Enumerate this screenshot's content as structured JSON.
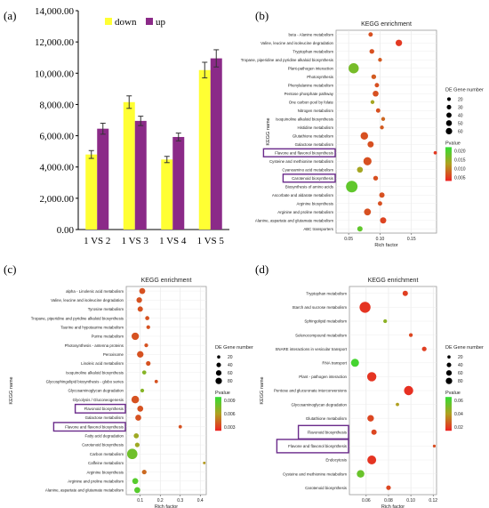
{
  "chart_data": [
    {
      "type": "bar",
      "panel": "(a)",
      "categories": [
        "1 VS 2",
        "1 VS 3",
        "1 VS 4",
        "1 VS 5"
      ],
      "series": [
        {
          "name": "down",
          "color": "#ffff33",
          "values": [
            4800,
            8150,
            4480,
            10200
          ],
          "errors": [
            250,
            400,
            200,
            500
          ]
        },
        {
          "name": "up",
          "color": "#8b2a88",
          "values": [
            6450,
            6950,
            5920,
            10950
          ],
          "errors": [
            350,
            300,
            250,
            550
          ]
        }
      ],
      "yticks": [
        "0.00",
        "2,000.00",
        "4,000.00",
        "6,000.00",
        "8,000.00",
        "10,000.00",
        "12,000.00",
        "14,000.00"
      ],
      "ylim": [
        0,
        14000
      ],
      "legend": "top"
    },
    {
      "type": "scatter",
      "panel": "(b)",
      "title": "KEGG enrichment",
      "ylabel": "KEGG name",
      "xlabel": "Rich factor",
      "xticks": [
        "0.05",
        "0.10",
        "0.15"
      ],
      "xlim": [
        0.03,
        0.19
      ],
      "xtickvals": [
        0.05,
        0.1,
        0.15
      ],
      "size_legend_title": "DE Gene number",
      "size_legend": [
        "20",
        "30",
        "40",
        "50",
        "60"
      ],
      "size_legend_vals": [
        20,
        30,
        40,
        50,
        60
      ],
      "color_legend_title": "Pvalue",
      "color_legend": [
        "0.020",
        "0.015",
        "0.010",
        "0.005"
      ],
      "pmax": 0.022,
      "highlighted": [
        "Flavone and flavonol biosynthesis",
        "Carotenoid biosynthesis"
      ],
      "terms": [
        {
          "name": "beta - Alanine metabolism",
          "x": 0.085,
          "n": 10,
          "p": 0.004
        },
        {
          "name": "Valine, leucine and isoleucine degradation",
          "x": 0.13,
          "n": 22,
          "p": 0.002
        },
        {
          "name": "Tryptophan metabolism",
          "x": 0.087,
          "n": 12,
          "p": 0.004
        },
        {
          "name": "Tropane, piperidine and pyridine alkaloid biosynthesis",
          "x": 0.1,
          "n": 8,
          "p": 0.005
        },
        {
          "name": "Plant-pathogen interaction",
          "x": 0.058,
          "n": 55,
          "p": 0.016
        },
        {
          "name": "Photosynthesis",
          "x": 0.09,
          "n": 12,
          "p": 0.005
        },
        {
          "name": "Phenylalanine metabolism",
          "x": 0.095,
          "n": 10,
          "p": 0.004
        },
        {
          "name": "Pentose phosphate pathway",
          "x": 0.093,
          "n": 18,
          "p": 0.004
        },
        {
          "name": "One carbon pool by folate",
          "x": 0.088,
          "n": 8,
          "p": 0.012
        },
        {
          "name": "Nitrogen metabolism",
          "x": 0.097,
          "n": 10,
          "p": 0.004
        },
        {
          "name": "Isoquinoline alkaloid biosynthesis",
          "x": 0.105,
          "n": 8,
          "p": 0.006
        },
        {
          "name": "Histidine metabolism",
          "x": 0.103,
          "n": 8,
          "p": 0.005
        },
        {
          "name": "Glutathione metabolism",
          "x": 0.075,
          "n": 30,
          "p": 0.004
        },
        {
          "name": "Galactose metabolism",
          "x": 0.085,
          "n": 20,
          "p": 0.004
        },
        {
          "name": "Flavone and flavonol biosynthesis",
          "x": 0.188,
          "n": 6,
          "p": 0.002
        },
        {
          "name": "Cysteine and methionine metabolism",
          "x": 0.08,
          "n": 35,
          "p": 0.004
        },
        {
          "name": "Cyanoamino acid metabolism",
          "x": 0.068,
          "n": 18,
          "p": 0.012
        },
        {
          "name": "Carotenoid biosynthesis",
          "x": 0.093,
          "n": 12,
          "p": 0.004
        },
        {
          "name": "Biosynthesis of amino acids",
          "x": 0.055,
          "n": 70,
          "p": 0.018
        },
        {
          "name": "Ascorbate and aldarate metabolism",
          "x": 0.103,
          "n": 15,
          "p": 0.004
        },
        {
          "name": "Arginine biosynthesis",
          "x": 0.1,
          "n": 10,
          "p": 0.004
        },
        {
          "name": "Arginine and proline metabolism",
          "x": 0.08,
          "n": 25,
          "p": 0.004
        },
        {
          "name": "Alanine, aspartate and glutamate metabolism",
          "x": 0.105,
          "n": 20,
          "p": 0.003
        },
        {
          "name": "ABC transporters",
          "x": 0.068,
          "n": 15,
          "p": 0.018
        }
      ]
    },
    {
      "type": "scatter",
      "panel": "(c)",
      "title": "KEGG enrichment",
      "ylabel": "KEGG name",
      "xlabel": "Rich factor",
      "xticks": [
        "0.1",
        "0.2",
        "0.3",
        "0.4"
      ],
      "xlim": [
        0.03,
        0.43
      ],
      "xtickvals": [
        0.1,
        0.2,
        0.3,
        0.4
      ],
      "size_legend_title": "DE Gene number",
      "size_legend": [
        "20",
        "40",
        "60",
        "80"
      ],
      "size_legend_vals": [
        20,
        40,
        60,
        80
      ],
      "color_legend_title": "Pvalue",
      "color_legend": [
        "0.009",
        "0.006",
        "0.003"
      ],
      "pmax": 0.0105,
      "highlighted": [
        "Flavonoid biosynthesis",
        "Flavone and flavonol biosynthesis"
      ],
      "terms": [
        {
          "name": "alpha - Linolenic acid metabolism",
          "x": 0.11,
          "n": 25,
          "p": 0.002
        },
        {
          "name": "Valine, leucine and isoleucine degradation",
          "x": 0.095,
          "n": 22,
          "p": 0.002
        },
        {
          "name": "Tyrosine metabolism",
          "x": 0.1,
          "n": 20,
          "p": 0.002
        },
        {
          "name": "Tropane, piperidine and pyridine alkaloid biosynthesis",
          "x": 0.135,
          "n": 12,
          "p": 0.002
        },
        {
          "name": "Taurine and hypotaurine metabolism",
          "x": 0.14,
          "n": 10,
          "p": 0.002
        },
        {
          "name": "Purine metabolism",
          "x": 0.075,
          "n": 38,
          "p": 0.002
        },
        {
          "name": "Photosynthesis - antenna proteins",
          "x": 0.13,
          "n": 10,
          "p": 0.002
        },
        {
          "name": "Peroxisome",
          "x": 0.1,
          "n": 30,
          "p": 0.002
        },
        {
          "name": "Linoleic acid metabolism",
          "x": 0.14,
          "n": 15,
          "p": 0.002
        },
        {
          "name": "Isoquinoline alkaloid biosynthesis",
          "x": 0.12,
          "n": 12,
          "p": 0.007
        },
        {
          "name": "Glycosphingolipid biosynthesis - globo series",
          "x": 0.18,
          "n": 8,
          "p": 0.002
        },
        {
          "name": "Glycosaminoglycan degradation",
          "x": 0.11,
          "n": 10,
          "p": 0.007
        },
        {
          "name": "Glycolysis / Gluconeogenesis",
          "x": 0.075,
          "n": 40,
          "p": 0.002
        },
        {
          "name": "Flavonoid biosynthesis",
          "x": 0.1,
          "n": 25,
          "p": 0.002
        },
        {
          "name": "Galactose metabolism",
          "x": 0.09,
          "n": 25,
          "p": 0.002
        },
        {
          "name": "Flavone and flavonol biosynthesis",
          "x": 0.3,
          "n": 8,
          "p": 0.002
        },
        {
          "name": "Fatty acid degradation",
          "x": 0.08,
          "n": 18,
          "p": 0.006
        },
        {
          "name": "Carotenoid biosynthesis",
          "x": 0.085,
          "n": 15,
          "p": 0.006
        },
        {
          "name": "Carbon metabolism",
          "x": 0.06,
          "n": 75,
          "p": 0.008
        },
        {
          "name": "Caffeine metabolism",
          "x": 0.42,
          "n": 5,
          "p": 0.005
        },
        {
          "name": "Arginine biosynthesis",
          "x": 0.12,
          "n": 15,
          "p": 0.003
        },
        {
          "name": "Arginine and proline metabolism",
          "x": 0.075,
          "n": 25,
          "p": 0.009
        },
        {
          "name": "Alanine, aspartate and glutamate metabolism",
          "x": 0.085,
          "n": 25,
          "p": 0.009
        }
      ]
    },
    {
      "type": "scatter",
      "panel": "(d)",
      "title": "KEGG enrichment",
      "ylabel": "KEGG name",
      "xlabel": "Rich factor",
      "xticks": [
        "0.06",
        "0.08",
        "0.10",
        "0.12"
      ],
      "xlim": [
        0.045,
        0.123
      ],
      "xtickvals": [
        0.06,
        0.08,
        0.1,
        0.12
      ],
      "size_legend_title": "DE Gene number",
      "size_legend": [
        "20",
        "40",
        "60",
        "80"
      ],
      "size_legend_vals": [
        20,
        40,
        60,
        80
      ],
      "color_legend_title": "Pvalue",
      "color_legend": [
        "0.06",
        "0.04",
        "0.02"
      ],
      "pmax": 0.07,
      "highlighted": [
        "Flavonoid biosynthesis",
        "Flavone and flavonol biosynthesis"
      ],
      "terms": [
        {
          "name": "Tryptophan metabolism",
          "x": 0.095,
          "n": 20,
          "p": 0.008
        },
        {
          "name": "Starch and sucrose metabolism",
          "x": 0.059,
          "n": 85,
          "p": 0.005
        },
        {
          "name": "Sphingolipid metabolism",
          "x": 0.077,
          "n": 10,
          "p": 0.045
        },
        {
          "name": "Selenocompound metabolism",
          "x": 0.1,
          "n": 10,
          "p": 0.01
        },
        {
          "name": "SNARE interactions in vesicular transport",
          "x": 0.112,
          "n": 15,
          "p": 0.008
        },
        {
          "name": "RNA transport",
          "x": 0.05,
          "n": 45,
          "p": 0.065
        },
        {
          "name": "Plant - pathogen interaction",
          "x": 0.065,
          "n": 60,
          "p": 0.005
        },
        {
          "name": "Pentose and glucuronate interconversions",
          "x": 0.098,
          "n": 60,
          "p": 0.004
        },
        {
          "name": "Glycosaminoglycan degradation",
          "x": 0.088,
          "n": 8,
          "p": 0.035
        },
        {
          "name": "Glutathione metabolism",
          "x": 0.064,
          "n": 30,
          "p": 0.01
        },
        {
          "name": "Flavonoid biosynthesis",
          "x": 0.067,
          "n": 20,
          "p": 0.01
        },
        {
          "name": "Flavone and flavonol biosynthesis",
          "x": 0.121,
          "n": 6,
          "p": 0.012
        },
        {
          "name": "Endocytosis",
          "x": 0.065,
          "n": 55,
          "p": 0.005
        },
        {
          "name": "Cysteine and methionine metabolism",
          "x": 0.055,
          "n": 40,
          "p": 0.055
        },
        {
          "name": "Carotenoid biosynthesis",
          "x": 0.08,
          "n": 15,
          "p": 0.01
        }
      ]
    }
  ]
}
